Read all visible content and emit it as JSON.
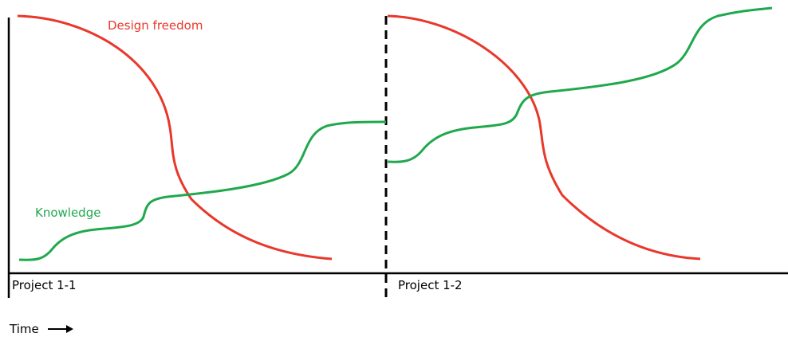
{
  "labels": {
    "design_freedom": "Design freedom",
    "knowledge": "Knowledge",
    "project_1": "Project 1-1",
    "project_2": "Project 1-2",
    "time": "Time"
  },
  "colors": {
    "design_freedom": "#e8382b",
    "knowledge": "#1fa84d",
    "axis": "#000000"
  },
  "icons": {
    "time_arrow": "right-arrow-icon"
  }
}
